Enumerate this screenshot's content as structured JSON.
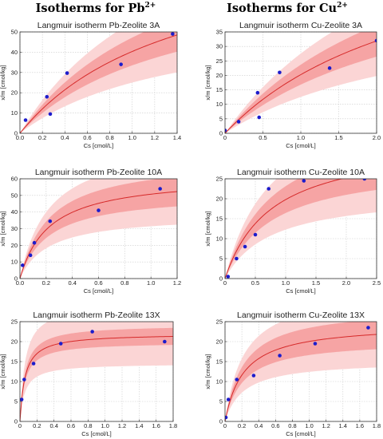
{
  "headers": {
    "left": {
      "text": "Isotherms for Pb",
      "charge": "2+"
    },
    "right": {
      "text": "Isotherms for Cu",
      "charge": "2+"
    }
  },
  "colors": {
    "outer_band": "#fbd5d5",
    "inner_band": "#f6a4a4",
    "fit_line": "#d62a2a",
    "points": "#1c1ccc",
    "grid": "#cccccc"
  },
  "chart_data": [
    {
      "type": "scatter",
      "title": "Langmuir isotherm Pb-Zeolite 3A",
      "xlabel": "Cs [cmol/L]",
      "ylabel": "x/m [cmol/kg]",
      "xlim": [
        0,
        1.4
      ],
      "ylim": [
        0,
        50
      ],
      "xticks": [
        "0.0",
        "0.2",
        "0.4",
        "0.6",
        "0.8",
        "1.0",
        "1.2",
        "1.4"
      ],
      "yticks": [
        "0",
        "10",
        "20",
        "30",
        "40",
        "50"
      ],
      "points": {
        "x": [
          0.05,
          0.24,
          0.27,
          0.42,
          0.9,
          1.36
        ],
        "y": [
          6.5,
          18,
          9.5,
          29.7,
          34,
          49
        ]
      },
      "fit": {
        "model": "langmuir",
        "qmax": 98,
        "K": 0.7
      },
      "inner_band": [
        0.83,
        1.17
      ],
      "outer_band": [
        0.62,
        1.36
      ],
      "grid": true
    },
    {
      "type": "scatter",
      "title": "Langmuir isotherm Cu-Zeolite 3A",
      "xlabel": "Cs [cmol/L]",
      "ylabel": "x/m [cmol/kg]",
      "xlim": [
        0,
        2.0
      ],
      "ylim": [
        0,
        35
      ],
      "xticks": [
        "0",
        "0.5",
        "1.0",
        "1.5",
        "2.0"
      ],
      "yticks": [
        "0",
        "5",
        "10",
        "15",
        "20",
        "25",
        "30",
        "35"
      ],
      "points": {
        "x": [
          0.0,
          0.18,
          0.43,
          0.45,
          0.72,
          1.38,
          2.0
        ],
        "y": [
          1.0,
          4.0,
          14.0,
          5.5,
          21.0,
          22.5,
          32.0
        ]
      },
      "fit": {
        "model": "langmuir",
        "qmax": 75,
        "K": 0.37
      },
      "inner_band": [
        0.83,
        1.17
      ],
      "outer_band": [
        0.62,
        1.36
      ],
      "grid": true
    },
    {
      "type": "scatter",
      "title": "Langmuir isotherm Pb-Zeolite 10A",
      "xlabel": "Cs [cmol/L]",
      "ylabel": "x/m [cmol/kg]",
      "xlim": [
        0,
        1.2
      ],
      "ylim": [
        0,
        60
      ],
      "xticks": [
        "0.0",
        "0.2",
        "0.4",
        "0.6",
        "0.8",
        "1.0",
        "1.2"
      ],
      "yticks": [
        "0",
        "10",
        "20",
        "30",
        "40",
        "50",
        "60"
      ],
      "points": {
        "x": [
          0.02,
          0.08,
          0.11,
          0.23,
          0.6,
          1.07
        ],
        "y": [
          8.0,
          14.0,
          21.5,
          34.5,
          41.0,
          54.0
        ]
      },
      "fit": {
        "model": "langmuir",
        "qmax": 62,
        "K": 4.5
      },
      "inner_band": [
        0.83,
        1.17
      ],
      "outer_band": [
        0.62,
        1.36
      ],
      "grid": true
    },
    {
      "type": "scatter",
      "title": "Langmuir isotherm Cu-Zeolite 10A",
      "xlabel": "Cs [cmol/L]",
      "ylabel": "x/m [cmol/kg]",
      "xlim": [
        0,
        2.5
      ],
      "ylim": [
        0,
        25
      ],
      "xticks": [
        "0",
        "0.5",
        "1.0",
        "1.5",
        "2.0",
        "2.5"
      ],
      "yticks": [
        "0",
        "5",
        "10",
        "15",
        "20",
        "25"
      ],
      "points": {
        "x": [
          0.05,
          0.19,
          0.33,
          0.5,
          0.72,
          1.3,
          2.3
        ],
        "y": [
          0.5,
          5.0,
          8.0,
          11.0,
          22.5,
          24.5,
          25.0
        ]
      },
      "fit": {
        "model": "langmuir",
        "qmax": 35,
        "K": 1.3
      },
      "inner_band": [
        0.83,
        1.17
      ],
      "outer_band": [
        0.62,
        1.36
      ],
      "grid": true
    },
    {
      "type": "scatter",
      "title": "Langmuir isotherm Pb-Zeolite 13X",
      "xlabel": "Cs [cmol/L]",
      "ylabel": "x/m [cmol/kg]",
      "xlim": [
        0,
        1.8
      ],
      "ylim": [
        0,
        25
      ],
      "xticks": [
        "0",
        "0.2",
        "0.4",
        "0.6",
        "0.8",
        "1.0",
        "1.2",
        "1.4",
        "1.6",
        "1.8"
      ],
      "yticks": [
        "0",
        "5",
        "10",
        "15",
        "20",
        "25"
      ],
      "points": {
        "x": [
          0.02,
          0.05,
          0.16,
          0.48,
          0.85,
          1.7
        ],
        "y": [
          5.5,
          10.5,
          14.5,
          19.5,
          22.5,
          20.0
        ]
      },
      "fit": {
        "model": "langmuir",
        "qmax": 22,
        "K": 17
      },
      "inner_band": [
        0.9,
        1.1
      ],
      "outer_band": [
        0.66,
        1.34
      ],
      "grid": true
    },
    {
      "type": "scatter",
      "title": "Langmuir isotherm Cu-Zeolite 13X",
      "xlabel": "Cs [cmol/L]",
      "ylabel": "x/m [cmol/kg]",
      "xlim": [
        0,
        1.8
      ],
      "ylim": [
        0,
        25
      ],
      "xticks": [
        "0",
        "0.2",
        "0.4",
        "0.6",
        "0.8",
        "1.0",
        "1.2",
        "1.4",
        "1.6",
        "1.8"
      ],
      "yticks": [
        "0",
        "5",
        "10",
        "15",
        "20",
        "25"
      ],
      "points": {
        "x": [
          0.01,
          0.04,
          0.14,
          0.34,
          0.65,
          1.07,
          1.7
        ],
        "y": [
          1.0,
          5.5,
          10.5,
          11.5,
          16.5,
          19.5,
          23.5
        ]
      },
      "fit": {
        "model": "langmuir",
        "qmax": 24.5,
        "K": 4.5
      },
      "inner_band": [
        0.83,
        1.17
      ],
      "outer_band": [
        0.62,
        1.36
      ],
      "grid": true
    }
  ]
}
